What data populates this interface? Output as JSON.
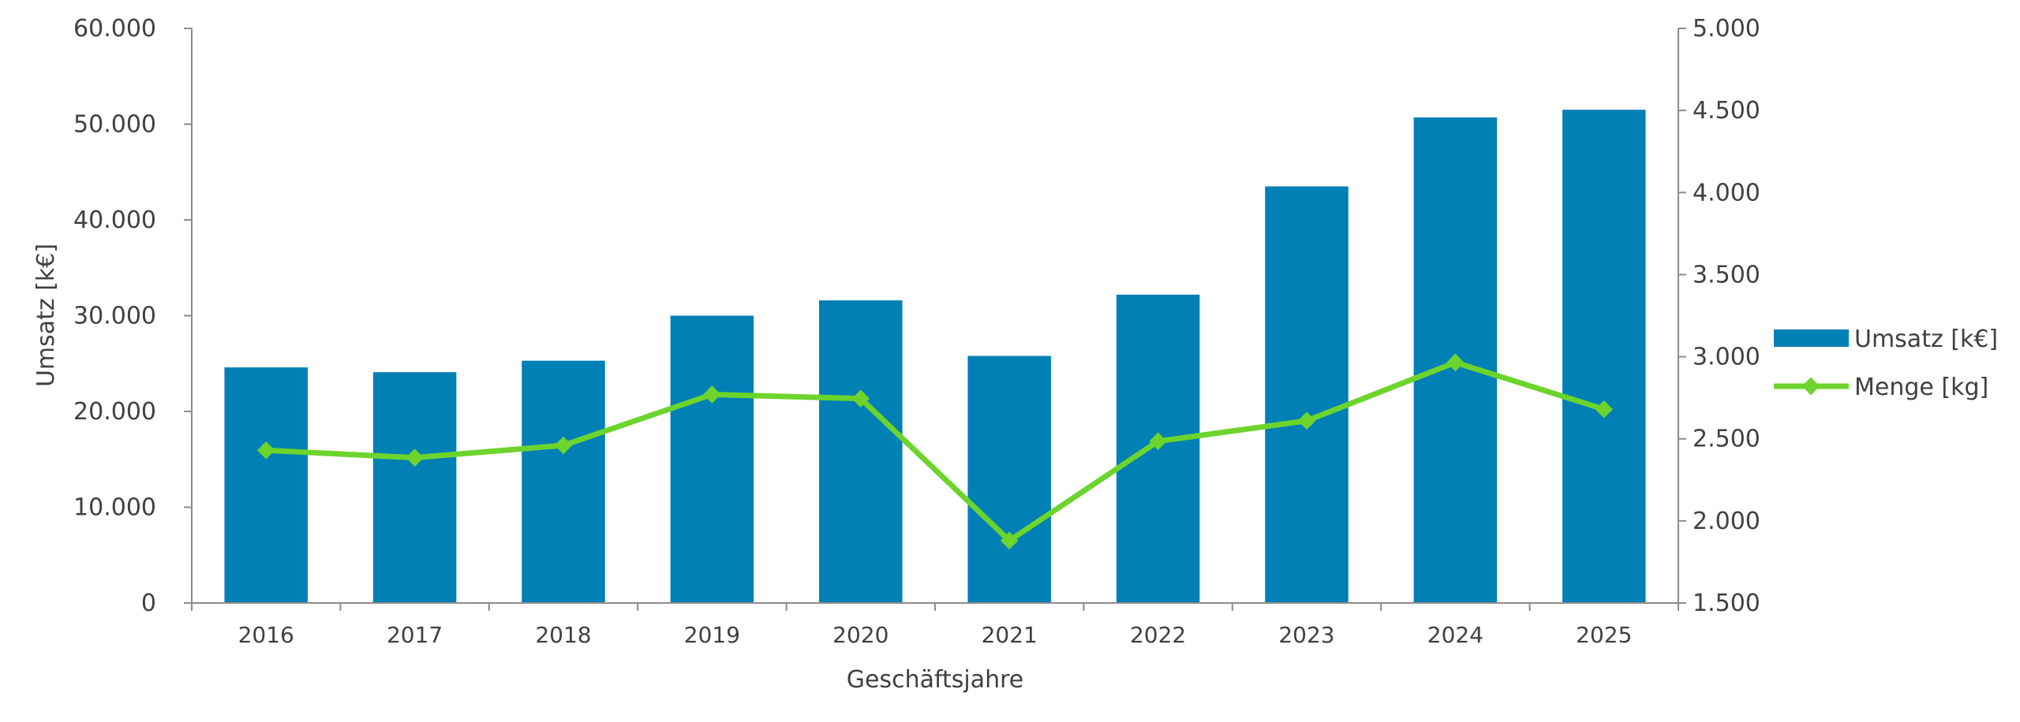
{
  "chart_data": {
    "type": "bar+line",
    "title": "",
    "xlabel": "Geschäftsjahre",
    "ylabel": "Umsatz [k€]",
    "categories": [
      "2016",
      "2017",
      "2018",
      "2019",
      "2020",
      "2021",
      "2022",
      "2023",
      "2024",
      "2025"
    ],
    "y_left": {
      "min": 0,
      "max": 60000,
      "step": 10000,
      "ticks": [
        "0",
        "10.000",
        "20.000",
        "30.000",
        "40.000",
        "50.000",
        "60.000"
      ]
    },
    "y_right": {
      "min": 1500,
      "max": 5000,
      "step": 500,
      "ticks": [
        "1.500",
        "2.000",
        "2.500",
        "3.000",
        "3.500",
        "4.000",
        "4.500",
        "5.000"
      ]
    },
    "series": [
      {
        "name": "Umsatz [k€]",
        "type": "bar",
        "axis": "left",
        "color": "#0080B4",
        "values": [
          24600,
          24100,
          25300,
          30000,
          31600,
          25800,
          32200,
          43500,
          50700,
          51500
        ]
      },
      {
        "name": "Menge [kg]",
        "type": "line",
        "axis": "right",
        "color": "#6CD42C",
        "values": [
          2430,
          2385,
          2460,
          2770,
          2745,
          1880,
          2485,
          2610,
          2965,
          2680
        ]
      }
    ],
    "legend": "right",
    "grid": false
  }
}
